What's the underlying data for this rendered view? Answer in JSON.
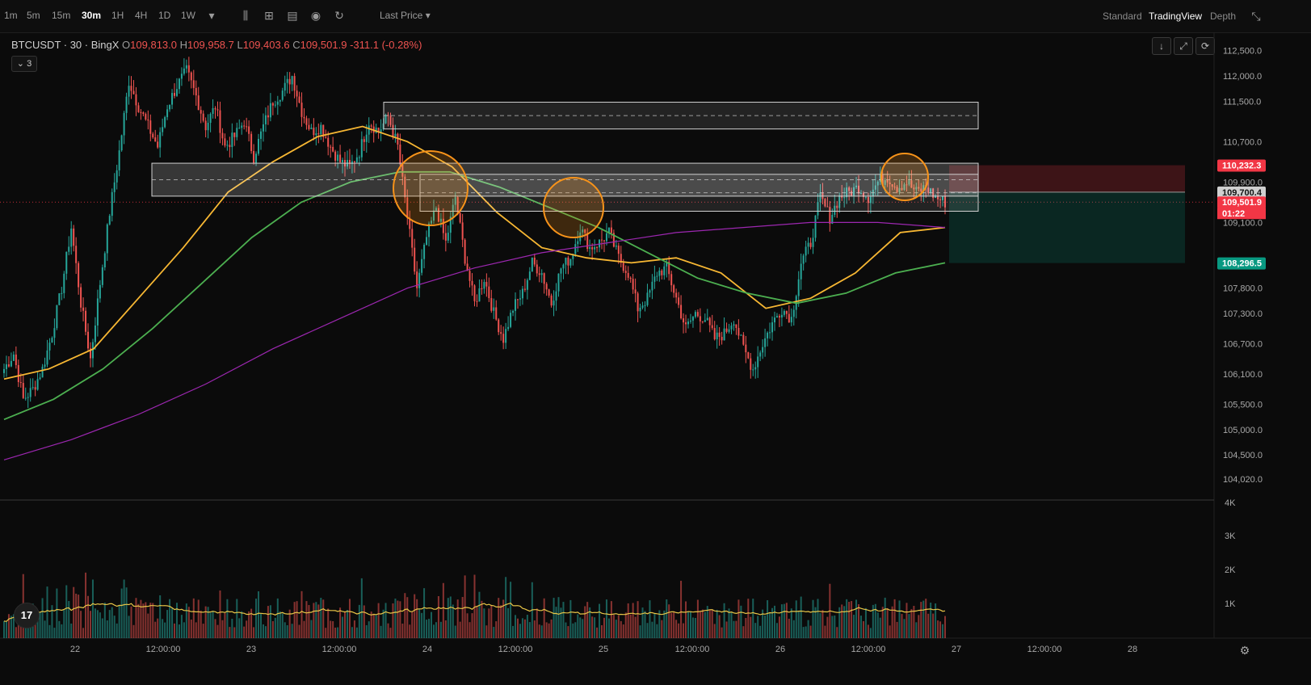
{
  "toolbar": {
    "timeframes": [
      "1m",
      "5m",
      "15m",
      "30m",
      "1H",
      "4H",
      "1D",
      "1W"
    ],
    "active_timeframe": "30m",
    "icons": [
      "chevron-down-icon",
      "chart-type-icon",
      "indicators-icon",
      "templates-icon",
      "camera-icon",
      "replay-icon"
    ],
    "price_source": "Last Price",
    "views": [
      "Standard",
      "TradingView",
      "Depth"
    ],
    "active_view": "TradingView"
  },
  "legend": {
    "symbol": "BTCUSDT · 30 · BingX",
    "open_label": "O",
    "open": "109,813.0",
    "high_label": "H",
    "high": "109,958.7",
    "low_label": "L",
    "low": "109,403.6",
    "close_label": "C",
    "close": "109,501.9",
    "change": "-311.1 (-0.28%)",
    "indicator_count": "3"
  },
  "chart_data": {
    "type": "candlestick",
    "symbol": "BTCUSDT",
    "interval": "30",
    "exchange": "BingX",
    "y_axis_ticks": [
      "112,500.0",
      "112,000.0",
      "111,500.0",
      "110,700.0",
      "109,900.0",
      "109,100.0",
      "107,800.0",
      "107,300.0",
      "106,700.0",
      "106,100.0",
      "105,500.0",
      "105,000.0",
      "104,500.0",
      "104,020.0"
    ],
    "x_axis_ticks": [
      "22",
      "12:00:00",
      "23",
      "12:00:00",
      "24",
      "12:00:00",
      "25",
      "12:00:00",
      "26",
      "12:00:00",
      "27",
      "12:00:00",
      "28"
    ],
    "volume_axis_ticks": [
      "4K",
      "3K",
      "2K",
      "1K"
    ],
    "price_labels": [
      {
        "value": "110,232.3",
        "color": "#f23645"
      },
      {
        "value": "109,700.4",
        "color": "#d0d0d0"
      },
      {
        "value": "109,501.9",
        "color": "#f23645"
      },
      {
        "value": "01:22",
        "color": "#f23645"
      },
      {
        "value": "108,296.5",
        "color": "#089981"
      }
    ],
    "ohlc_path": [
      106200,
      106500,
      105600,
      105800,
      106200,
      106900,
      107800,
      109000,
      107500,
      106400,
      107900,
      109300,
      110500,
      111900,
      111400,
      111000,
      110600,
      111400,
      111800,
      112100,
      111600,
      111000,
      111400,
      110600,
      110800,
      111100,
      110400,
      111000,
      111500,
      111700,
      112000,
      111300,
      110900,
      111000,
      110600,
      110300,
      110200,
      110500,
      111100,
      110900,
      111200,
      110600,
      109200,
      107800,
      108800,
      109400,
      108700,
      109600,
      108400,
      107500,
      108000,
      107300,
      106800,
      107400,
      107700,
      108300,
      108100,
      107500,
      108200,
      108400,
      109000,
      108600,
      108700,
      108900,
      108400,
      108100,
      107400,
      107600,
      108100,
      108200,
      107600,
      107000,
      107300,
      107200,
      106800,
      106900,
      107200,
      106600,
      106200,
      106700,
      107100,
      107400,
      107200,
      108300,
      108700,
      109600,
      109200,
      109600,
      109700,
      109800,
      109600,
      109900,
      110000,
      109800,
      109900,
      109700,
      109800,
      109600,
      109500
    ],
    "moving_averages": [
      {
        "color": "#f7b733",
        "values": [
          106000,
          106200,
          106600,
          107600,
          108600,
          109700,
          110300,
          110800,
          111000,
          110700,
          110200,
          109300,
          108600,
          108400,
          108300,
          108400,
          108100,
          107400,
          107600,
          108100,
          108900,
          109000
        ]
      },
      {
        "color": "#4caf50",
        "values": [
          105200,
          105600,
          106200,
          107000,
          107900,
          108800,
          109500,
          109900,
          110100,
          110100,
          109800,
          109400,
          109000,
          108500,
          108000,
          107700,
          107500,
          107700,
          108100,
          108300
        ]
      },
      {
        "color": "#9c27b0",
        "values": [
          104400,
          104800,
          105300,
          105900,
          106600,
          107200,
          107800,
          108200,
          108500,
          108700,
          108900,
          109000,
          109100,
          109100,
          109000
        ]
      }
    ],
    "volume_ma_color": "#e8c547",
    "annotations": {
      "zones": 3,
      "circles": 3,
      "position_tool": {
        "stop": "110,232.3",
        "entry": "109,700.4",
        "target": "108,296.5"
      }
    }
  }
}
